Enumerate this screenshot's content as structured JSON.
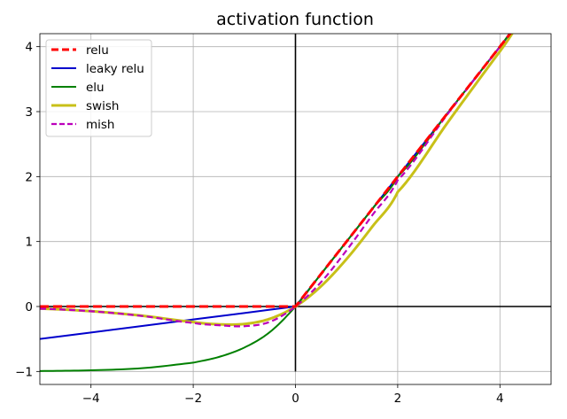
{
  "chart_data": {
    "type": "line",
    "title": "activation function",
    "xlabel": "",
    "ylabel": "",
    "xlim": [
      -5,
      5
    ],
    "ylim": [
      -1.2,
      4.2
    ],
    "x_ticks": [
      -4,
      -2,
      0,
      2,
      4
    ],
    "x_tick_labels": [
      "−4",
      "−2",
      "0",
      "2",
      "4"
    ],
    "y_ticks": [
      -1,
      0,
      1,
      2,
      3,
      4
    ],
    "y_tick_labels": [
      "−1",
      "0",
      "1",
      "2",
      "3",
      "4"
    ],
    "grid": true,
    "legend_position": "top-left",
    "x": [
      -5,
      -4,
      -3,
      -2,
      -1.5,
      -1,
      -0.5,
      0,
      0.5,
      1,
      1.5,
      2,
      3,
      4,
      5
    ],
    "series": [
      {
        "name": "relu",
        "color": "#ff0000",
        "style": "dashed",
        "values": [
          0,
          0,
          0,
          0,
          0,
          0,
          0,
          0,
          0.5,
          1,
          1.5,
          2,
          3,
          4,
          5
        ]
      },
      {
        "name": "leaky relu",
        "color": "#0000cc",
        "style": "solid",
        "values": [
          -0.5,
          -0.4,
          -0.3,
          -0.2,
          -0.15,
          -0.1,
          -0.05,
          0,
          0.5,
          1,
          1.5,
          2,
          3,
          4,
          5
        ]
      },
      {
        "name": "elu",
        "color": "#008000",
        "style": "solid",
        "values": [
          -0.993,
          -0.982,
          -0.95,
          -0.865,
          -0.777,
          -0.632,
          -0.393,
          0,
          0.5,
          1,
          1.5,
          2,
          3,
          4,
          5
        ]
      },
      {
        "name": "swish",
        "color": "#c8c018",
        "style": "solid",
        "values": [
          -0.033,
          -0.072,
          -0.142,
          -0.238,
          -0.274,
          -0.269,
          -0.189,
          0,
          0.311,
          0.731,
          1.226,
          1.762,
          2.857,
          3.928,
          4.967
        ]
      },
      {
        "name": "mish",
        "color": "#bb00bb",
        "style": "dashed",
        "values": [
          -0.034,
          -0.073,
          -0.146,
          -0.253,
          -0.288,
          -0.303,
          -0.236,
          0,
          0.375,
          0.865,
          1.403,
          1.944,
          2.987,
          3.997,
          5.0
        ]
      }
    ]
  }
}
